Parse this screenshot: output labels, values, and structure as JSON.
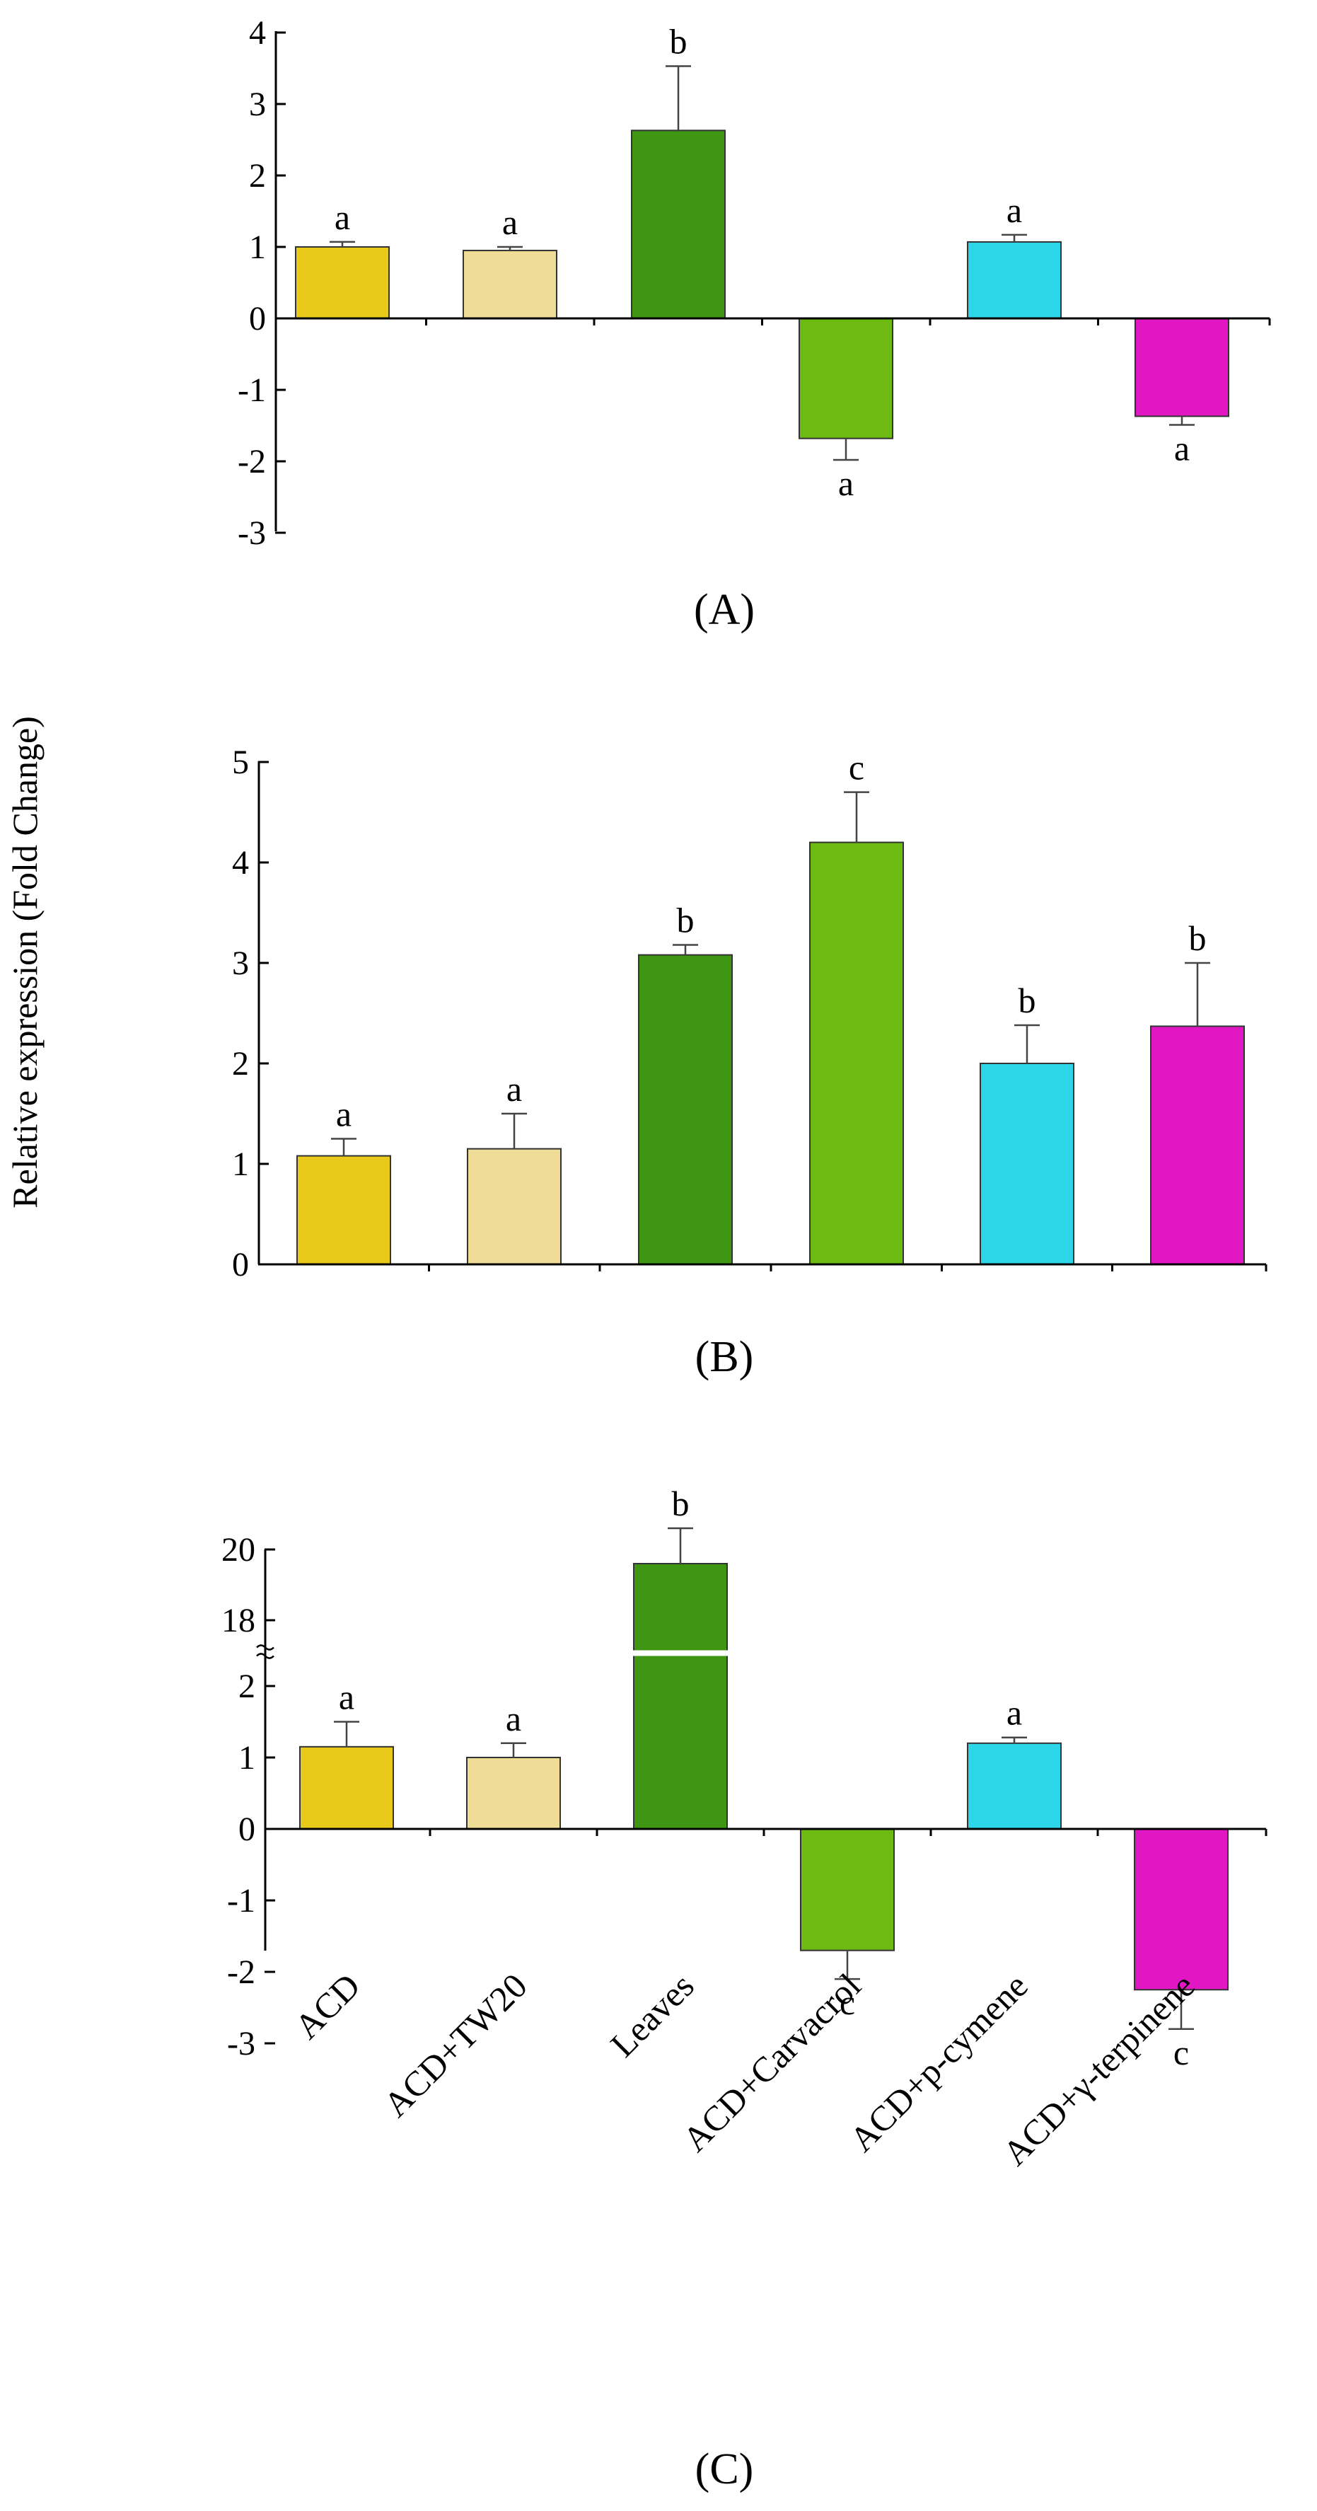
{
  "ylabel": "Relative expression (Fold Change)",
  "colors": [
    "#E9CA1B",
    "#EFDC96",
    "#3F9612",
    "#6DBB12",
    "#2DD5E8",
    "#E217C4"
  ],
  "chart_data": [
    {
      "type": "bar",
      "panel_label": "(A)",
      "categories": [
        "ACD",
        "ACD+TW20",
        "Leaves",
        "ACD+Carvacrol",
        "ACD+p-cymene",
        "ACD+γ-terpinene"
      ],
      "values": [
        1.0,
        0.95,
        2.63,
        -1.68,
        1.07,
        -1.37
      ],
      "errors": [
        0.07,
        0.05,
        0.9,
        0.3,
        0.1,
        0.12
      ],
      "significance": [
        "a",
        "a",
        "b",
        "a",
        "a",
        "a"
      ],
      "ylim": [
        -3,
        4
      ],
      "yticks": [
        4,
        3,
        2,
        1,
        0,
        -1,
        -2,
        -3
      ],
      "tick_labels": [
        "4",
        "3",
        "2",
        "1",
        "0",
        "-1",
        "-2",
        "-3"
      ]
    },
    {
      "type": "bar",
      "panel_label": "(B)",
      "categories": [
        "ACD",
        "ACD+TW20",
        "Leaves",
        "ACD+Carvacrol",
        "ACD+p-cymene",
        "ACD+γ-terpinene"
      ],
      "values": [
        1.08,
        1.15,
        3.08,
        4.2,
        2.0,
        2.37
      ],
      "errors": [
        0.17,
        0.35,
        0.1,
        0.5,
        0.38,
        0.63
      ],
      "significance": [
        "a",
        "a",
        "b",
        "c",
        "b",
        "b"
      ],
      "ylim": [
        0,
        5
      ],
      "yticks": [
        5,
        4,
        3,
        2,
        1,
        0
      ],
      "tick_labels": [
        "5",
        "4",
        "3",
        "2",
        "1",
        "0"
      ]
    },
    {
      "type": "bar",
      "panel_label": "(C)",
      "categories": [
        "ACD",
        "ACD+TW20",
        "Leaves",
        "ACD+Carvacrol",
        "ACD+p-cymene",
        "ACD+γ-terpinene"
      ],
      "values": [
        1.15,
        1.0,
        19.6,
        -1.7,
        1.2,
        -2.25
      ],
      "errors": [
        0.35,
        0.2,
        1.0,
        0.4,
        0.08,
        0.55
      ],
      "significance": [
        "a",
        "a",
        "b",
        "c",
        "a",
        "c"
      ],
      "ylim": [
        -3,
        20
      ],
      "axis_break": "between 2 and 18",
      "yticks": [
        20,
        18,
        2,
        1,
        0,
        -1,
        -2,
        -3
      ],
      "tick_labels": [
        "20",
        "18",
        "2",
        "1",
        "0",
        "-1",
        "-2",
        "-3"
      ]
    }
  ]
}
